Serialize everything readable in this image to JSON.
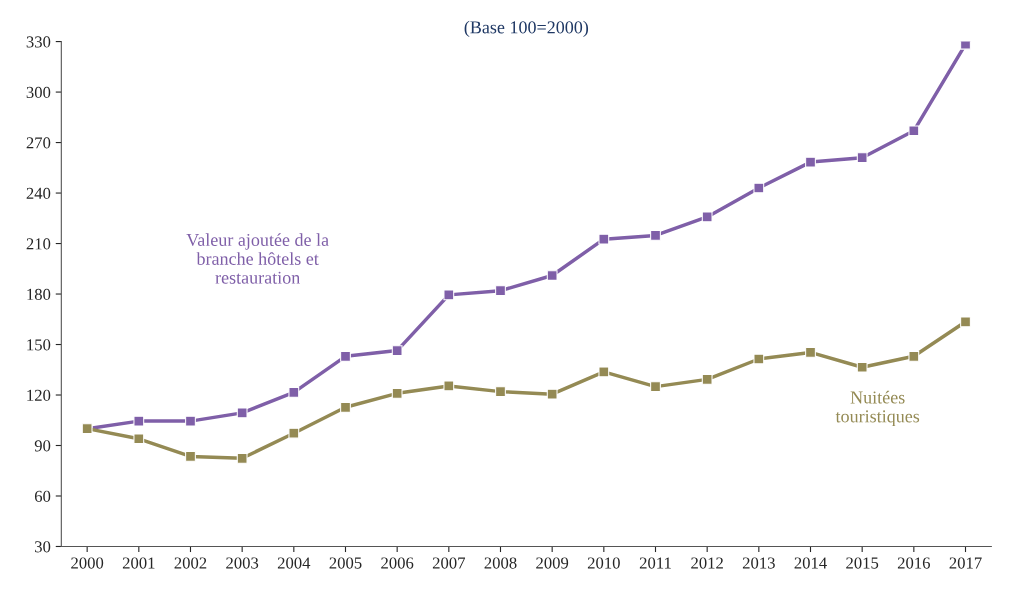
{
  "chart_data": {
    "type": "line",
    "title": "(Base 100=2000)",
    "categories": [
      "2000",
      "2001",
      "2002",
      "2003",
      "2004",
      "2005",
      "2006",
      "2007",
      "2008",
      "2009",
      "2010",
      "2011",
      "2012",
      "2013",
      "2014",
      "2015",
      "2016",
      "2017"
    ],
    "series": [
      {
        "name": "Valeur ajoutée de la\nbranche hôtels et\nrestauration",
        "color": "#7f5fa8",
        "values": [
          100,
          104.5,
          104.5,
          109.4,
          121.6,
          143,
          146.4,
          179.5,
          182,
          191,
          212.6,
          214.8,
          225.8,
          243,
          258.4,
          261,
          277,
          328.4
        ]
      },
      {
        "name": "Nuitées\ntouristiques",
        "color": "#948a54",
        "values": [
          100,
          94,
          83.5,
          82.4,
          97.3,
          112.7,
          121,
          125.4,
          122,
          120.5,
          133.7,
          125,
          129.3,
          141.4,
          145.3,
          136.5,
          143,
          163.5
        ]
      }
    ],
    "ylim": [
      30,
      330
    ],
    "yticks": [
      30,
      60,
      90,
      120,
      150,
      180,
      210,
      240,
      270,
      300,
      330
    ],
    "grid": false,
    "legend": false,
    "marker": "square",
    "line_style": "solid"
  }
}
